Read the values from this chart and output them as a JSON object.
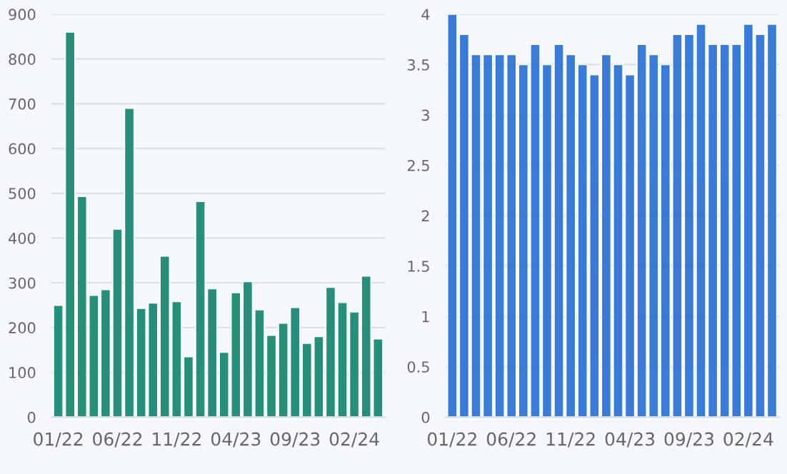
{
  "chart_data": [
    {
      "type": "bar",
      "categories": [
        "01/22",
        null,
        null,
        null,
        null,
        "06/22",
        null,
        null,
        null,
        null,
        "11/22",
        null,
        null,
        null,
        null,
        "04/23",
        null,
        null,
        null,
        null,
        "09/23",
        null,
        null,
        null,
        null,
        "02/24",
        null,
        null
      ],
      "series": [
        {
          "color": "#1b8a73",
          "values": [
            250,
            860,
            493,
            272,
            285,
            420,
            690,
            243,
            255,
            360,
            258,
            135,
            482,
            287,
            145,
            278,
            303,
            240,
            183,
            210,
            245,
            165,
            180,
            290,
            256,
            235,
            315,
            175
          ]
        }
      ],
      "ylim": [
        0,
        900
      ],
      "yticks": [
        0,
        100,
        200,
        300,
        400,
        500,
        600,
        700,
        800,
        900
      ],
      "grid": "y"
    },
    {
      "type": "bar",
      "categories": [
        "01/22",
        null,
        null,
        null,
        null,
        "06/22",
        null,
        null,
        null,
        null,
        "11/22",
        null,
        null,
        null,
        null,
        "04/23",
        null,
        null,
        null,
        null,
        "09/23",
        null,
        null,
        null,
        null,
        "02/24",
        null,
        null
      ],
      "series": [
        {
          "color": "#2f74d6",
          "values": [
            4.0,
            3.8,
            3.6,
            3.6,
            3.6,
            3.6,
            3.5,
            3.7,
            3.5,
            3.7,
            3.6,
            3.5,
            3.4,
            3.6,
            3.5,
            3.4,
            3.7,
            3.6,
            3.5,
            3.8,
            3.8,
            3.9,
            3.7,
            3.7,
            3.7,
            3.9,
            3.8,
            3.9
          ]
        }
      ],
      "ylim": [
        0,
        4
      ],
      "yticks": [
        0,
        0.5,
        1,
        1.5,
        2,
        2.5,
        3,
        3.5,
        4
      ],
      "grid": "y"
    }
  ]
}
